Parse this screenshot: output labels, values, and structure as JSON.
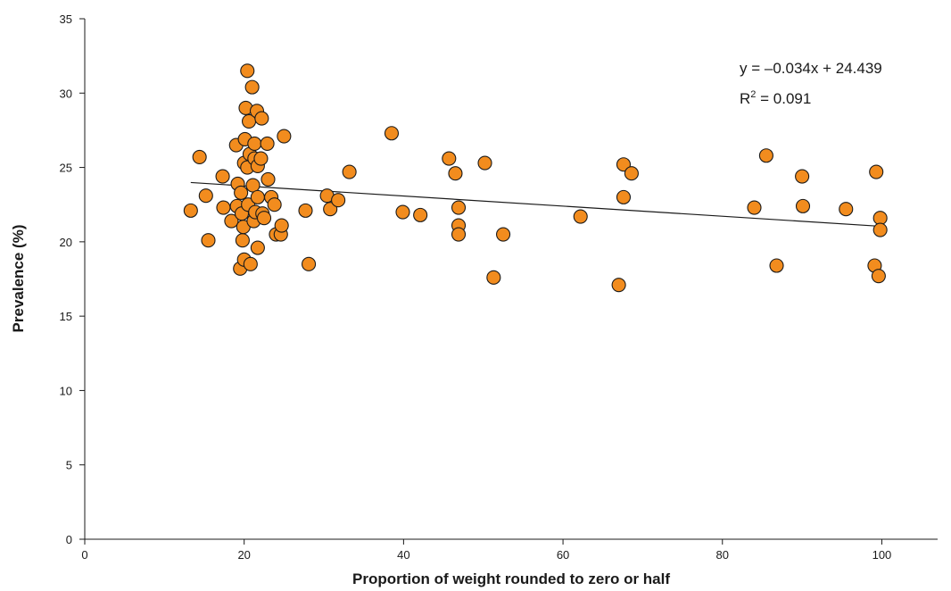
{
  "chart_data": {
    "type": "scatter",
    "xlabel": "Proportion of weight rounded to zero or half",
    "ylabel": "Prevalence (%)",
    "xlim": [
      0,
      107
    ],
    "ylim": [
      0,
      35
    ],
    "x_ticks": [
      0,
      20,
      40,
      60,
      80,
      100
    ],
    "y_ticks": [
      0,
      5,
      10,
      15,
      20,
      25,
      30,
      35
    ],
    "grid": false,
    "marker_color": "#F28C1E",
    "marker_edge_color": "#1a1a1a",
    "trendline": {
      "slope": -0.034,
      "intercept": 24.439,
      "x_range": [
        13.3,
        100
      ],
      "equation_label": "y = –0.034x + 24.439",
      "r2_prefix": "R",
      "r2_sup": "2",
      "r2_suffix": " = 0.091"
    },
    "points": [
      {
        "x": 13.3,
        "y": 22.1
      },
      {
        "x": 14.4,
        "y": 25.7
      },
      {
        "x": 15.2,
        "y": 23.1
      },
      {
        "x": 15.5,
        "y": 20.1
      },
      {
        "x": 17.3,
        "y": 24.4
      },
      {
        "x": 17.4,
        "y": 22.3
      },
      {
        "x": 18.4,
        "y": 21.4
      },
      {
        "x": 19.0,
        "y": 26.5
      },
      {
        "x": 19.1,
        "y": 22.4
      },
      {
        "x": 19.2,
        "y": 23.9
      },
      {
        "x": 19.5,
        "y": 18.2
      },
      {
        "x": 19.6,
        "y": 23.3
      },
      {
        "x": 19.7,
        "y": 21.9
      },
      {
        "x": 19.8,
        "y": 20.1
      },
      {
        "x": 19.9,
        "y": 21.0
      },
      {
        "x": 20.0,
        "y": 18.8
      },
      {
        "x": 20.0,
        "y": 25.3
      },
      {
        "x": 20.1,
        "y": 26.9
      },
      {
        "x": 20.2,
        "y": 29.0
      },
      {
        "x": 20.4,
        "y": 31.5
      },
      {
        "x": 20.4,
        "y": 25.0
      },
      {
        "x": 20.5,
        "y": 22.5
      },
      {
        "x": 20.6,
        "y": 28.1
      },
      {
        "x": 20.7,
        "y": 25.9
      },
      {
        "x": 20.8,
        "y": 18.5
      },
      {
        "x": 21.0,
        "y": 30.4
      },
      {
        "x": 21.1,
        "y": 23.8
      },
      {
        "x": 21.2,
        "y": 21.4
      },
      {
        "x": 21.3,
        "y": 25.6
      },
      {
        "x": 21.3,
        "y": 26.6
      },
      {
        "x": 21.4,
        "y": 22.0
      },
      {
        "x": 21.6,
        "y": 28.8
      },
      {
        "x": 21.7,
        "y": 25.1
      },
      {
        "x": 21.7,
        "y": 23.0
      },
      {
        "x": 21.7,
        "y": 19.6
      },
      {
        "x": 22.1,
        "y": 25.6
      },
      {
        "x": 22.2,
        "y": 28.3
      },
      {
        "x": 22.3,
        "y": 21.9
      },
      {
        "x": 22.5,
        "y": 21.6
      },
      {
        "x": 22.9,
        "y": 26.6
      },
      {
        "x": 23.0,
        "y": 24.2
      },
      {
        "x": 23.4,
        "y": 23.0
      },
      {
        "x": 23.8,
        "y": 22.5
      },
      {
        "x": 24.0,
        "y": 20.5
      },
      {
        "x": 24.6,
        "y": 20.5
      },
      {
        "x": 24.7,
        "y": 21.1
      },
      {
        "x": 25.0,
        "y": 27.1
      },
      {
        "x": 27.7,
        "y": 22.1
      },
      {
        "x": 28.1,
        "y": 18.5
      },
      {
        "x": 30.4,
        "y": 23.1
      },
      {
        "x": 30.8,
        "y": 22.2
      },
      {
        "x": 31.8,
        "y": 22.8
      },
      {
        "x": 33.2,
        "y": 24.7
      },
      {
        "x": 38.5,
        "y": 27.3
      },
      {
        "x": 39.9,
        "y": 22.0
      },
      {
        "x": 42.1,
        "y": 21.8
      },
      {
        "x": 45.7,
        "y": 25.6
      },
      {
        "x": 46.5,
        "y": 24.6
      },
      {
        "x": 46.9,
        "y": 22.3
      },
      {
        "x": 46.9,
        "y": 21.1
      },
      {
        "x": 46.9,
        "y": 20.5
      },
      {
        "x": 50.2,
        "y": 25.3
      },
      {
        "x": 51.3,
        "y": 17.6
      },
      {
        "x": 52.5,
        "y": 20.5
      },
      {
        "x": 62.2,
        "y": 21.7
      },
      {
        "x": 67.0,
        "y": 17.1
      },
      {
        "x": 67.6,
        "y": 25.2
      },
      {
        "x": 67.6,
        "y": 23.0
      },
      {
        "x": 68.6,
        "y": 24.6
      },
      {
        "x": 84.0,
        "y": 22.3
      },
      {
        "x": 85.5,
        "y": 25.8
      },
      {
        "x": 86.8,
        "y": 18.4
      },
      {
        "x": 90.0,
        "y": 24.4
      },
      {
        "x": 90.1,
        "y": 22.4
      },
      {
        "x": 95.5,
        "y": 22.2
      },
      {
        "x": 99.1,
        "y": 18.4
      },
      {
        "x": 99.3,
        "y": 24.7
      },
      {
        "x": 99.6,
        "y": 17.7
      },
      {
        "x": 99.8,
        "y": 21.6
      },
      {
        "x": 99.8,
        "y": 20.8
      }
    ]
  }
}
